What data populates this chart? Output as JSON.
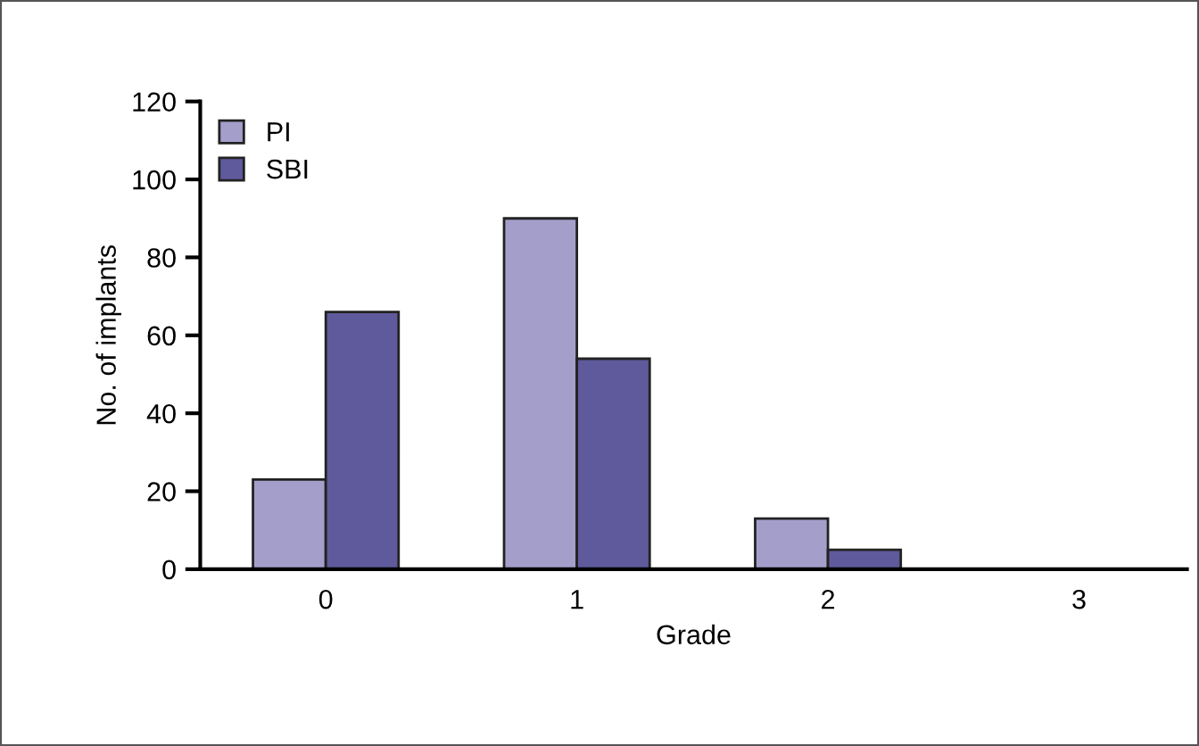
{
  "chart_data": {
    "type": "bar",
    "xlabel": "Grade",
    "ylabel": "No. of implants",
    "categories": [
      "0",
      "1",
      "2",
      "3"
    ],
    "series": [
      {
        "name": "PI",
        "color": "#a49fca",
        "values": [
          23,
          90,
          13,
          0
        ]
      },
      {
        "name": "SBI",
        "color": "#5f5a9c",
        "values": [
          66,
          54,
          5,
          0
        ]
      }
    ],
    "ylim": [
      0,
      120
    ],
    "yticks": [
      0,
      20,
      40,
      60,
      80,
      100,
      120
    ],
    "grid": false,
    "legend": "top left"
  }
}
